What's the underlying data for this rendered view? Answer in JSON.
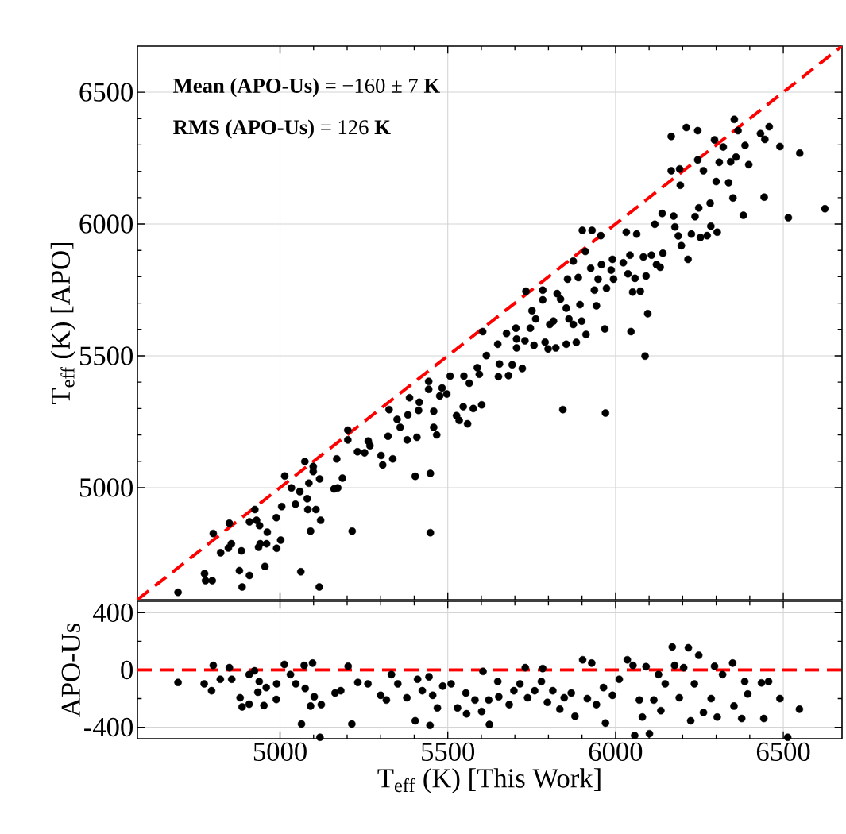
{
  "chart_data": [
    {
      "type": "scatter",
      "ylabel": "T$_{eff}$ (K) [APO]",
      "annotations": [
        "**Mean (APO-Us)** = −160 ± 7 **K**",
        "**RMS (APO-Us)** = 126 **K**"
      ],
      "xlim": [
        4575,
        6675
      ],
      "ylim": [
        4575,
        6675
      ],
      "xticks": [
        5000,
        5500,
        6000,
        6500
      ],
      "yticks": [
        5000,
        5500,
        6000,
        6500
      ],
      "tick_labels": "y",
      "grid": true,
      "series": [
        {
          "color": "#000000",
          "marker": "circle",
          "x": [
            4696,
            4775,
            4778,
            4798,
            4801,
            4823,
            4846,
            4849,
            4855,
            4879,
            4885,
            4887,
            4909,
            4909,
            4925,
            4930,
            4939,
            4936,
            4941,
            4955,
            4960,
            4962,
            4989,
            4990,
            5002,
            5005,
            5014,
            5034,
            5046,
            5059,
            5062,
            5074,
            5081,
            5083,
            5086,
            5091,
            5099,
            5099,
            5107,
            5117,
            5118,
            5121,
            5161,
            5169,
            5172,
            5186,
            5202,
            5202,
            5215,
            5231,
            5252,
            5263,
            5268,
            5301,
            5306,
            5322,
            5325,
            5336,
            5349,
            5358,
            5379,
            5381,
            5386,
            5403,
            5408,
            5413,
            5415,
            5443,
            5443,
            5448,
            5448,
            5458,
            5458,
            5467,
            5476,
            5483,
            5497,
            5507,
            5526,
            5534,
            5546,
            5548,
            5559,
            5564,
            5576,
            5588,
            5594,
            5601,
            5604,
            5615,
            5649,
            5651,
            5654,
            5675,
            5681,
            5692,
            5703,
            5705,
            5705,
            5722,
            5730,
            5733,
            5746,
            5751,
            5757,
            5762,
            5783,
            5783,
            5790,
            5799,
            5804,
            5815,
            5822,
            5826,
            5836,
            5843,
            5853,
            5853,
            5857,
            5861,
            5874,
            5874,
            5883,
            5889,
            5894,
            5899,
            5901,
            5910,
            5912,
            5926,
            5930,
            5937,
            5943,
            5948,
            5956,
            5958,
            5968,
            5970,
            5973,
            5987,
            5991,
            5994,
            6023,
            6032,
            6037,
            6043,
            6046,
            6051,
            6058,
            6063,
            6074,
            6083,
            6088,
            6091,
            6096,
            6107,
            6117,
            6122,
            6133,
            6139,
            6141,
            6166,
            6166,
            6173,
            6177,
            6187,
            6191,
            6193,
            6196,
            6211,
            6216,
            6226,
            6237,
            6245,
            6245,
            6248,
            6253,
            6262,
            6273,
            6282,
            6284,
            6295,
            6300,
            6303,
            6309,
            6321,
            6337,
            6343,
            6350,
            6354,
            6359,
            6365,
            6381,
            6386,
            6397,
            6432,
            6443,
            6445,
            6458,
            6490,
            6515,
            6549,
            6624
          ],
          "values": [
            4603,
            4674,
            4647,
            4647,
            4826,
            4753,
            4771,
            4865,
            4787,
            4685,
            4760,
            4623,
            4667,
            4870,
            4917,
            4876,
            4856,
            4774,
            4787,
            4701,
            4787,
            4831,
            4886,
            4770,
            4801,
            4928,
            5044,
            4999,
            4937,
            4985,
            4681,
            5099,
            4958,
            4917,
            5017,
            4835,
            5080,
            5061,
            4917,
            4623,
            5033,
            4876,
            4995,
            5109,
            4999,
            5036,
            5218,
            5181,
            4835,
            5136,
            5132,
            5177,
            5159,
            5122,
            5086,
            5195,
            5296,
            5109,
            5259,
            5229,
            5181,
            5276,
            5341,
            5043,
            5191,
            5293,
            5324,
            5403,
            5373,
            5054,
            4829,
            5290,
            5229,
            5200,
            5348,
            5378,
            5355,
            5423,
            5273,
            5255,
            5307,
            5423,
            5242,
            5396,
            5300,
            5455,
            5430,
            5314,
            5592,
            5501,
            5544,
            5421,
            5469,
            5585,
            5425,
            5466,
            5605,
            5564,
            5530,
            5452,
            5557,
            5745,
            5605,
            5671,
            5540,
            5640,
            5749,
            5712,
            5552,
            5526,
            5619,
            5632,
            5530,
            5736,
            5715,
            5296,
            5681,
            5544,
            5791,
            5640,
            5859,
            5619,
            5551,
            5797,
            5694,
            5632,
            5976,
            5896,
            5581,
            5832,
            5976,
            5749,
            5690,
            5791,
            5956,
            5846,
            5602,
            5283,
            5756,
            5825,
            5866,
            5791,
            5853,
            5969,
            5811,
            5882,
            5592,
            5742,
            5794,
            5962,
            5745,
            5875,
            5499,
            5803,
            5660,
            5882,
            5999,
            5846,
            5836,
            6040,
            5889,
            6332,
            6202,
            6030,
            5989,
            5955,
            6209,
            6147,
            5918,
            6366,
            5866,
            5962,
            6028,
            6243,
            6354,
            6061,
            5949,
            6202,
            5956,
            6079,
            5992,
            6319,
            6161,
            5969,
            6234,
            6292,
            6157,
            6236,
            6099,
            6397,
            6254,
            6354,
            6033,
            6298,
            6225,
            6343,
            6102,
            6321,
            6369,
            6294,
            6024,
            6269,
            6058
          ]
        },
        {
          "type": "line",
          "color": "#ff0000",
          "marker": "none",
          "line_style": "dashed",
          "x": [
            4575,
            6675
          ],
          "values": [
            4575,
            6675
          ]
        }
      ]
    },
    {
      "type": "scatter",
      "xlabel": "T$_{eff}$ (K) [This Work]",
      "ylabel": "APO-Us",
      "xlim": [
        4575,
        6675
      ],
      "ylim": [
        -480,
        480
      ],
      "xticks": [
        5000,
        5500,
        6000,
        6500
      ],
      "yticks": [
        -400,
        0,
        400
      ],
      "grid": true,
      "ref_lines": [
        {
          "axis": "y",
          "value": 0,
          "color": "#ff0000",
          "line_style": "dashed"
        }
      ],
      "series": [
        {
          "color": "#000000",
          "marker": "circle",
          "x": [
            4696,
            4774,
            4796,
            4801,
            4822,
            4849,
            4856,
            4881,
            4887,
            4908,
            4908,
            4924,
            4938,
            4934,
            4952,
            4959,
            4989,
            4990,
            5013,
            5031,
            5047,
            5064,
            5072,
            5075,
            5091,
            5097,
            5102,
            5119,
            5123,
            5164,
            5181,
            5203,
            5214,
            5232,
            5262,
            5300,
            5317,
            5332,
            5351,
            5378,
            5403,
            5410,
            5424,
            5444,
            5447,
            5455,
            5469,
            5485,
            5510,
            5529,
            5554,
            5556,
            5581,
            5601,
            5605,
            5624,
            5622,
            5649,
            5652,
            5683,
            5697,
            5715,
            5731,
            5738,
            5759,
            5779,
            5783,
            5797,
            5813,
            5834,
            5847,
            5868,
            5879,
            5902,
            5916,
            5929,
            5943,
            5970,
            5964,
            5991,
            6011,
            6035,
            6052,
            6057,
            6071,
            6080,
            6091,
            6101,
            6114,
            6128,
            6135,
            6148,
            6169,
            6176,
            6190,
            6203,
            6217,
            6224,
            6235,
            6248,
            6262,
            6285,
            6295,
            6303,
            6319,
            6349,
            6353,
            6376,
            6385,
            6394,
            6435,
            6442,
            6456,
            6490,
            6513,
            6548
          ],
          "values": [
            -87,
            -97,
            -145,
            32,
            -65,
            16,
            -65,
            -194,
            -258,
            -239,
            -32,
            -6,
            -81,
            -155,
            -248,
            -123,
            -206,
            -97,
            39,
            -32,
            -97,
            -377,
            32,
            -129,
            -252,
            48,
            -187,
            -470,
            -242,
            -161,
            -145,
            26,
            -377,
            -87,
            -97,
            -177,
            -210,
            -32,
            -97,
            -194,
            -355,
            -65,
            -145,
            -48,
            -387,
            -177,
            -265,
            -113,
            -97,
            -265,
            -161,
            -306,
            -210,
            -290,
            -10,
            -381,
            -210,
            -81,
            -187,
            -242,
            -145,
            -97,
            16,
            -194,
            -145,
            -81,
            10,
            -226,
            -145,
            -274,
            -194,
            -161,
            -323,
            71,
            -200,
            48,
            -242,
            -371,
            -123,
            -177,
            -65,
            71,
            32,
            -458,
            -210,
            -329,
            23,
            -445,
            -210,
            -32,
            -284,
            -97,
            161,
            32,
            -194,
            16,
            155,
            -355,
            -97,
            103,
            -297,
            -200,
            26,
            -329,
            -32,
            48,
            -252,
            -339,
            -81,
            -168,
            -90,
            -339,
            -81,
            -200,
            -470,
            -274
          ]
        }
      ]
    }
  ]
}
